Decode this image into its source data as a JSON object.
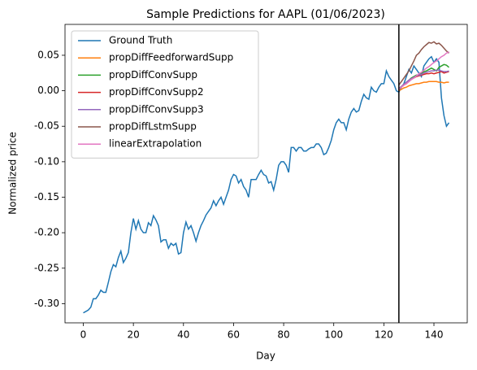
{
  "chart_data": {
    "type": "line",
    "title": "Sample Predictions for AAPL (01/06/2023)",
    "xlabel": "Day",
    "ylabel": "Normalized price",
    "xlim": [
      -7.3,
      153.3
    ],
    "ylim": [
      -0.327,
      0.0935
    ],
    "xticks": [
      0,
      20,
      40,
      60,
      80,
      100,
      120,
      140
    ],
    "yticks": [
      {
        "value": -0.3,
        "label": "-0.30"
      },
      {
        "value": -0.25,
        "label": "-0.25"
      },
      {
        "value": -0.2,
        "label": "-0.20"
      },
      {
        "value": -0.15,
        "label": "-0.15"
      },
      {
        "value": -0.1,
        "label": "-0.10"
      },
      {
        "value": -0.05,
        "label": "-0.05"
      },
      {
        "value": 0,
        "label": "0.00"
      },
      {
        "value": 0.05,
        "label": "0.05"
      }
    ],
    "grid": false,
    "legend": "upper left",
    "vlines": [
      {
        "x": 126,
        "color": "#000000"
      }
    ],
    "series": [
      {
        "name": "Ground Truth",
        "color": "#1f77b4",
        "x": [
          0,
          1,
          2,
          3,
          4,
          5,
          6,
          7,
          8,
          9,
          10,
          11,
          12,
          13,
          14,
          15,
          16,
          17,
          18,
          19,
          20,
          21,
          22,
          23,
          24,
          25,
          26,
          27,
          28,
          29,
          30,
          31,
          32,
          33,
          34,
          35,
          36,
          37,
          38,
          39,
          40,
          41,
          42,
          43,
          44,
          45,
          46,
          47,
          48,
          49,
          50,
          51,
          52,
          53,
          54,
          55,
          56,
          57,
          58,
          59,
          60,
          61,
          62,
          63,
          64,
          65,
          66,
          67,
          68,
          69,
          70,
          71,
          72,
          73,
          74,
          75,
          76,
          77,
          78,
          79,
          80,
          81,
          82,
          83,
          84,
          85,
          86,
          87,
          88,
          89,
          90,
          91,
          92,
          93,
          94,
          95,
          96,
          97,
          98,
          99,
          100,
          101,
          102,
          103,
          104,
          105,
          106,
          107,
          108,
          109,
          110,
          111,
          112,
          113,
          114,
          115,
          116,
          117,
          118,
          119,
          120,
          121,
          122,
          123,
          124,
          125,
          126,
          127,
          128,
          129,
          130,
          131,
          132,
          133,
          134,
          135,
          136,
          137,
          138,
          139,
          140,
          141,
          142,
          143,
          144,
          145,
          146
        ],
        "values": [
          -0.313,
          -0.311,
          -0.309,
          -0.305,
          -0.293,
          -0.293,
          -0.288,
          -0.281,
          -0.284,
          -0.284,
          -0.27,
          -0.255,
          -0.245,
          -0.248,
          -0.235,
          -0.226,
          -0.242,
          -0.236,
          -0.228,
          -0.2,
          -0.18,
          -0.195,
          -0.183,
          -0.195,
          -0.2,
          -0.2,
          -0.186,
          -0.19,
          -0.176,
          -0.182,
          -0.19,
          -0.213,
          -0.21,
          -0.21,
          -0.222,
          -0.215,
          -0.218,
          -0.215,
          -0.23,
          -0.228,
          -0.2,
          -0.185,
          -0.195,
          -0.19,
          -0.2,
          -0.212,
          -0.2,
          -0.19,
          -0.183,
          -0.175,
          -0.17,
          -0.165,
          -0.155,
          -0.162,
          -0.155,
          -0.15,
          -0.16,
          -0.15,
          -0.14,
          -0.125,
          -0.118,
          -0.12,
          -0.13,
          -0.125,
          -0.135,
          -0.14,
          -0.15,
          -0.125,
          -0.125,
          -0.125,
          -0.118,
          -0.112,
          -0.118,
          -0.12,
          -0.13,
          -0.128,
          -0.14,
          -0.125,
          -0.105,
          -0.1,
          -0.1,
          -0.105,
          -0.115,
          -0.08,
          -0.08,
          -0.085,
          -0.08,
          -0.08,
          -0.085,
          -0.085,
          -0.082,
          -0.08,
          -0.08,
          -0.075,
          -0.075,
          -0.08,
          -0.09,
          -0.088,
          -0.08,
          -0.07,
          -0.055,
          -0.045,
          -0.04,
          -0.045,
          -0.045,
          -0.055,
          -0.04,
          -0.03,
          -0.025,
          -0.03,
          -0.028,
          -0.015,
          -0.005,
          -0.01,
          -0.012,
          0.005,
          0.0,
          -0.002,
          0.005,
          0.01,
          0.01,
          0.028,
          0.02,
          0.015,
          0.01,
          0.0,
          -0.002,
          0.005,
          0.01,
          0.02,
          0.03,
          0.025,
          0.035,
          0.03,
          0.025,
          0.02,
          0.035,
          0.04,
          0.045,
          0.048,
          0.04,
          0.045,
          0.04,
          -0.01,
          -0.035,
          -0.05,
          -0.045
        ]
      },
      {
        "name": "propDiffFeedforwardSupp",
        "color": "#ff7f0e",
        "x": [
          126,
          127,
          128,
          129,
          130,
          131,
          132,
          133,
          134,
          135,
          136,
          137,
          138,
          139,
          140,
          141,
          142,
          143,
          144,
          145,
          146
        ],
        "values": [
          0.0,
          0.002,
          0.004,
          0.005,
          0.007,
          0.008,
          0.009,
          0.01,
          0.01,
          0.011,
          0.012,
          0.012,
          0.013,
          0.013,
          0.013,
          0.013,
          0.012,
          0.012,
          0.011,
          0.012,
          0.012
        ]
      },
      {
        "name": "propDiffConvSupp",
        "color": "#2ca02c",
        "x": [
          126,
          127,
          128,
          129,
          130,
          131,
          132,
          133,
          134,
          135,
          136,
          137,
          138,
          139,
          140,
          141,
          142,
          143,
          144,
          145,
          146
        ],
        "values": [
          0.003,
          0.006,
          0.009,
          0.012,
          0.015,
          0.018,
          0.02,
          0.022,
          0.022,
          0.025,
          0.027,
          0.028,
          0.03,
          0.032,
          0.03,
          0.028,
          0.033,
          0.035,
          0.037,
          0.036,
          0.033
        ]
      },
      {
        "name": "propDiffConvSupp2",
        "color": "#d62728",
        "x": [
          126,
          127,
          128,
          129,
          130,
          131,
          132,
          133,
          134,
          135,
          136,
          137,
          138,
          139,
          140,
          141,
          142,
          143,
          144,
          145,
          146
        ],
        "values": [
          0.002,
          0.005,
          0.008,
          0.01,
          0.013,
          0.016,
          0.018,
          0.02,
          0.021,
          0.022,
          0.023,
          0.024,
          0.024,
          0.025,
          0.024,
          0.025,
          0.026,
          0.027,
          0.025,
          0.026,
          0.027
        ]
      },
      {
        "name": "propDiffConvSupp3",
        "color": "#9467bd",
        "x": [
          126,
          127,
          128,
          129,
          130,
          131,
          132,
          133,
          134,
          135,
          136,
          137,
          138,
          139,
          140,
          141,
          142,
          143,
          144,
          145,
          146
        ],
        "values": [
          0.003,
          0.006,
          0.009,
          0.012,
          0.015,
          0.017,
          0.019,
          0.021,
          0.022,
          0.023,
          0.025,
          0.026,
          0.027,
          0.028,
          0.028,
          0.029,
          0.029,
          0.028,
          0.027,
          0.027,
          0.028
        ]
      },
      {
        "name": "propDiffLstmSupp",
        "color": "#8c564b",
        "x": [
          126,
          127,
          128,
          129,
          130,
          131,
          132,
          133,
          134,
          135,
          136,
          137,
          138,
          139,
          140,
          141,
          142,
          143,
          144,
          145,
          146
        ],
        "values": [
          0.008,
          0.013,
          0.018,
          0.023,
          0.028,
          0.035,
          0.042,
          0.05,
          0.053,
          0.058,
          0.062,
          0.065,
          0.068,
          0.067,
          0.069,
          0.066,
          0.067,
          0.064,
          0.06,
          0.056,
          0.053
        ]
      },
      {
        "name": "linearExtrapolation",
        "color": "#e377c2",
        "x": [
          126,
          127,
          128,
          129,
          130,
          131,
          132,
          133,
          134,
          135,
          136,
          137,
          138,
          139,
          140,
          141,
          142,
          143,
          144,
          145,
          146
        ],
        "values": [
          0.002,
          0.005,
          0.008,
          0.01,
          0.013,
          0.016,
          0.018,
          0.021,
          0.024,
          0.026,
          0.029,
          0.032,
          0.034,
          0.037,
          0.04,
          0.042,
          0.045,
          0.048,
          0.05,
          0.053,
          0.055
        ]
      }
    ]
  }
}
